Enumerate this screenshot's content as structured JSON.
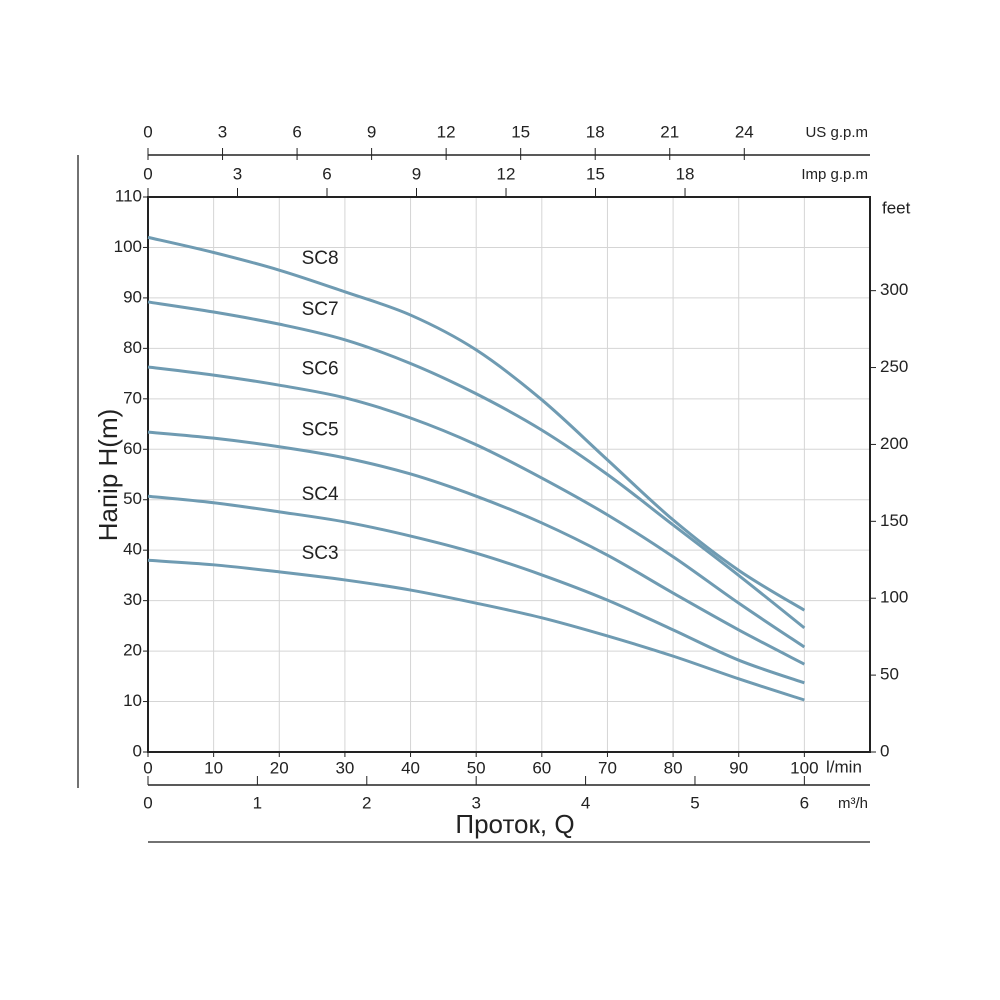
{
  "chart_data": {
    "type": "line",
    "y_label": "Напір H(m)",
    "x_label": "Проток, Q",
    "x_unit": "l/min",
    "x": [
      0,
      10,
      20,
      30,
      40,
      50,
      60,
      70,
      80,
      90,
      100
    ],
    "xlim": [
      0,
      110
    ],
    "xticks": [
      0,
      10,
      20,
      30,
      40,
      50,
      60,
      70,
      80,
      90,
      100
    ],
    "ylim": [
      0,
      110
    ],
    "yticks": [
      0,
      10,
      20,
      30,
      40,
      50,
      60,
      70,
      80,
      90,
      100,
      110
    ],
    "y2_label": "feet",
    "y2lim": [
      0,
      360.9
    ],
    "y2ticks": [
      0,
      50,
      100,
      150,
      200,
      250,
      300
    ],
    "grid": true,
    "extra_x_axes": [
      {
        "name": "US g.p.m",
        "position": "top",
        "lim": [
          0,
          29.06
        ],
        "ticks": [
          0,
          3,
          6,
          9,
          12,
          15,
          18,
          21,
          24
        ]
      },
      {
        "name": "Imp g.p.m",
        "position": "top",
        "lim": [
          0,
          24.2
        ],
        "ticks": [
          0,
          3,
          6,
          9,
          12,
          15,
          18
        ]
      },
      {
        "name": "m³/h",
        "position": "bottom",
        "lim": [
          0,
          6.6
        ],
        "ticks": [
          0,
          1,
          2,
          3,
          4,
          5,
          6
        ]
      }
    ],
    "series": [
      {
        "name": "SC8",
        "color": "#6f9bb2",
        "values": [
          102,
          99,
          95.5,
          91.2,
          86.6,
          79.7,
          69.8,
          57.9,
          46,
          36,
          28.1
        ]
      },
      {
        "name": "SC7",
        "color": "#6f9bb2",
        "values": [
          89.2,
          87.2,
          84.8,
          81.7,
          77,
          71,
          63.8,
          55,
          45,
          35,
          24.6
        ]
      },
      {
        "name": "SC6",
        "color": "#6f9bb2",
        "values": [
          76.3,
          74.7,
          72.7,
          70.2,
          66.2,
          60.9,
          54.3,
          47,
          38.7,
          29.5,
          20.8
        ]
      },
      {
        "name": "SC5",
        "color": "#6f9bb2",
        "values": [
          63.4,
          62.2,
          60.5,
          58.3,
          55.1,
          50.7,
          45.4,
          39,
          31.5,
          24.2,
          17.4
        ]
      },
      {
        "name": "SC4",
        "color": "#6f9bb2",
        "values": [
          50.7,
          49.4,
          47.6,
          45.6,
          42.8,
          39.4,
          35.1,
          30.1,
          24.2,
          18.2,
          13.7
        ]
      },
      {
        "name": "SC3",
        "color": "#6f9bb2",
        "values": [
          38,
          37.1,
          35.7,
          34.1,
          32.1,
          29.5,
          26.6,
          23,
          19,
          14.5,
          10.3
        ]
      }
    ]
  }
}
